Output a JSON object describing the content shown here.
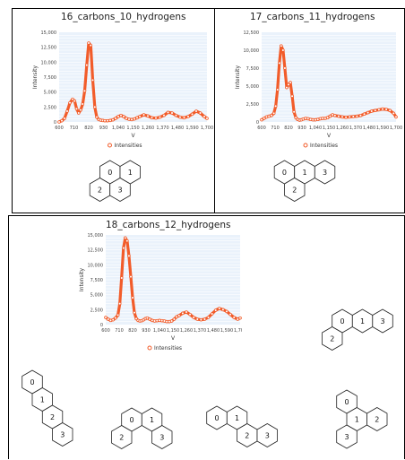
{
  "panels": [
    {
      "title": "16_carbons_10_hydrogens",
      "molecule": [
        "0",
        "1",
        "2",
        "3"
      ]
    },
    {
      "title": "17_carbons_11_hydrogens",
      "molecule": [
        "0",
        "1",
        "3",
        "2"
      ]
    },
    {
      "title": "18_carbons_12_hydrogens",
      "molecules": [
        [
          "0",
          "1",
          "3",
          "2"
        ],
        [
          "0",
          "1",
          "2",
          "3"
        ],
        [
          "0",
          "1",
          "2",
          "3"
        ],
        [
          "0",
          "1",
          "2",
          "3"
        ],
        [
          "0",
          "1",
          "2",
          "3"
        ]
      ]
    }
  ],
  "colors": {
    "series": "#f25c2a",
    "plot_bg": "#eaf2fb",
    "grid": "#ffffff"
  },
  "chart_data": [
    {
      "type": "line",
      "title": "16_carbons_10_hydrogens",
      "xlabel": "V",
      "ylabel": "Intensity",
      "xtick_labels": [
        "600",
        "710",
        "820",
        "930",
        "1,040",
        "1,150",
        "1,260",
        "1,370",
        "1,480",
        "1,590",
        "1,700"
      ],
      "ytick_labels": [
        "0",
        "2,500",
        "5,000",
        "7,500",
        "10,000",
        "12,500",
        "15,000"
      ],
      "xlim": [
        600,
        1700
      ],
      "ylim": [
        0,
        15000
      ],
      "legend": "bottom",
      "series": [
        {
          "name": "Intensities",
          "x": [
            600,
            620,
            640,
            660,
            680,
            700,
            715,
            730,
            745,
            760,
            775,
            790,
            805,
            820,
            835,
            850,
            865,
            880,
            895,
            910,
            925,
            940,
            960,
            980,
            1000,
            1020,
            1040,
            1060,
            1080,
            1100,
            1120,
            1140,
            1160,
            1180,
            1200,
            1230,
            1260,
            1290,
            1320,
            1350,
            1380,
            1410,
            1440,
            1470,
            1500,
            1530,
            1560,
            1590,
            1620,
            1650,
            1680,
            1700
          ],
          "y": [
            0,
            200,
            600,
            1800,
            3200,
            3800,
            3500,
            2200,
            1500,
            2000,
            3000,
            5200,
            9500,
            13200,
            12800,
            7000,
            2500,
            800,
            400,
            300,
            250,
            200,
            200,
            250,
            350,
            600,
            900,
            1100,
            900,
            600,
            450,
            400,
            500,
            700,
            900,
            1200,
            1000,
            700,
            650,
            800,
            1100,
            1600,
            1500,
            1100,
            800,
            700,
            900,
            1300,
            1800,
            1500,
            900,
            600
          ]
        }
      ]
    },
    {
      "type": "line",
      "title": "17_carbons_11_hydrogens",
      "xlabel": "V",
      "ylabel": "Intensity",
      "xtick_labels": [
        "600",
        "710",
        "820",
        "930",
        "1,040",
        "1,150",
        "1,260",
        "1,370",
        "1,480",
        "1,590",
        "1,700"
      ],
      "ytick_labels": [
        "0",
        "2,500",
        "5,000",
        "7,500",
        "10,000",
        "12,500"
      ],
      "xlim": [
        600,
        1700
      ],
      "ylim": [
        0,
        12500
      ],
      "legend": "bottom",
      "series": [
        {
          "name": "Intensities",
          "x": [
            600,
            620,
            640,
            660,
            680,
            700,
            715,
            730,
            745,
            760,
            775,
            790,
            805,
            820,
            835,
            850,
            865,
            880,
            895,
            910,
            925,
            940,
            960,
            980,
            1000,
            1020,
            1040,
            1060,
            1080,
            1100,
            1120,
            1140,
            1160,
            1180,
            1200,
            1230,
            1260,
            1290,
            1320,
            1350,
            1380,
            1410,
            1440,
            1470,
            1500,
            1530,
            1560,
            1590,
            1620,
            1650,
            1680,
            1700
          ],
          "y": [
            300,
            500,
            700,
            800,
            900,
            1200,
            2200,
            4500,
            8200,
            10600,
            10000,
            7500,
            4800,
            5200,
            5500,
            3600,
            1400,
            600,
            350,
            250,
            300,
            400,
            500,
            450,
            350,
            300,
            300,
            350,
            450,
            500,
            500,
            600,
            800,
            1000,
            900,
            800,
            700,
            650,
            700,
            750,
            800,
            900,
            1100,
            1300,
            1500,
            1600,
            1700,
            1800,
            1750,
            1600,
            1200,
            700
          ]
        }
      ]
    },
    {
      "type": "line",
      "title": "18_carbons_12_hydrogens",
      "xlabel": "V",
      "ylabel": "Intensity",
      "xtick_labels": [
        "600",
        "710",
        "820",
        "930",
        "1,040",
        "1,150",
        "1,260",
        "1,370",
        "1,480",
        "1,590",
        "1,700"
      ],
      "ytick_labels": [
        "0",
        "2,500",
        "5,000",
        "7,500",
        "10,000",
        "12,500",
        "15,000"
      ],
      "xlim": [
        600,
        1700
      ],
      "ylim": [
        0,
        15000
      ],
      "legend": "bottom",
      "series": [
        {
          "name": "Intensities",
          "x": [
            600,
            620,
            640,
            660,
            680,
            700,
            715,
            730,
            745,
            760,
            775,
            790,
            805,
            820,
            835,
            850,
            865,
            880,
            895,
            910,
            925,
            940,
            960,
            980,
            1000,
            1020,
            1040,
            1060,
            1080,
            1100,
            1120,
            1140,
            1160,
            1180,
            1200,
            1230,
            1260,
            1290,
            1320,
            1350,
            1380,
            1410,
            1440,
            1470,
            1500,
            1530,
            1560,
            1590,
            1620,
            1650,
            1680,
            1700
          ],
          "y": [
            1200,
            900,
            700,
            800,
            1100,
            1600,
            3500,
            7800,
            12800,
            14500,
            14000,
            11500,
            8000,
            4500,
            2000,
            1000,
            700,
            600,
            650,
            800,
            1000,
            1100,
            900,
            700,
            600,
            650,
            700,
            650,
            600,
            500,
            500,
            600,
            900,
            1300,
            1500,
            1900,
            2100,
            1700,
            1200,
            900,
            800,
            900,
            1200,
            1800,
            2400,
            2700,
            2500,
            2200,
            1700,
            1200,
            900,
            1100
          ]
        }
      ]
    }
  ]
}
